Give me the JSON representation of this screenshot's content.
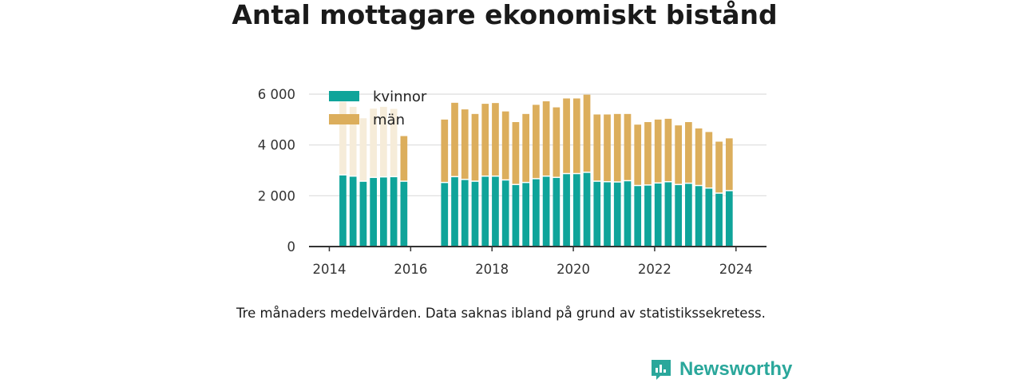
{
  "title": "Antal mottagare ekonomiskt bistånd",
  "note": "Tre månaders medelvärden. Data saknas ibland på grund av statistikssekretess.",
  "brand": "Newsworthy",
  "colors": {
    "kvinnor": "#0fa49a",
    "man": "#dcae5c",
    "man_faded": "#f6ecd9",
    "axis": "#333333",
    "grid": "#dddddd",
    "brand": "#2aa79b"
  },
  "chart_data": {
    "type": "bar",
    "stacked": true,
    "x_type": "date",
    "xlim": [
      "2013-07-01",
      "2024-10-01"
    ],
    "ylim": [
      0,
      6000
    ],
    "yticks": [
      0,
      2000,
      4000,
      6000
    ],
    "ytick_labels": [
      "0",
      "2 000",
      "4 000",
      "6 000"
    ],
    "xticks": [
      "2014-01-01",
      "2016-01-01",
      "2018-01-01",
      "2020-01-01",
      "2022-01-01",
      "2024-01-01"
    ],
    "xtick_labels": [
      "2014",
      "2016",
      "2018",
      "2020",
      "2022",
      "2024"
    ],
    "grid": true,
    "legend_position": "top-left",
    "legend": [
      {
        "name": "kvinnor",
        "color": "#0fa49a"
      },
      {
        "name": "män",
        "color": "#dcae5c"
      }
    ],
    "note": "The män series is drawn faded for 2014-04 to 2015-07 while kvinnor is shown solid in that period.",
    "series": [
      {
        "name": "kvinnor",
        "values": [
          2800,
          2750,
          2550,
          2700,
          2720,
          2730,
          2550,
          null,
          null,
          null,
          2500,
          2730,
          2620,
          2550,
          2750,
          2750,
          2600,
          2420,
          2500,
          2650,
          2750,
          2700,
          2850,
          2850,
          2900,
          2550,
          2530,
          2520,
          2570,
          2380,
          2400,
          2480,
          2530,
          2420,
          2470,
          2380,
          2280,
          2080,
          2180
        ]
      },
      {
        "name": "män",
        "values": [
          2900,
          2750,
          2500,
          2730,
          2780,
          2690,
          1800,
          null,
          null,
          null,
          2500,
          2930,
          2780,
          2670,
          2870,
          2900,
          2720,
          2480,
          2720,
          2930,
          2970,
          2780,
          2980,
          2980,
          3080,
          2650,
          2670,
          2700,
          2650,
          2420,
          2500,
          2520,
          2500,
          2350,
          2430,
          2270,
          2230,
          2050,
          2080
        ]
      }
    ],
    "dates": [
      "2014-04",
      "2014-07",
      "2014-10",
      "2015-01",
      "2015-04",
      "2015-07",
      "2015-10",
      "2016-01",
      "2016-04",
      "2016-07",
      "2016-10",
      "2017-01",
      "2017-04",
      "2017-07",
      "2017-10",
      "2018-01",
      "2018-04",
      "2018-07",
      "2018-10",
      "2019-01",
      "2019-04",
      "2019-07",
      "2019-10",
      "2020-01",
      "2020-04",
      "2020-07",
      "2020-10",
      "2021-01",
      "2021-04",
      "2021-07",
      "2021-10",
      "2022-01",
      "2022-04",
      "2022-07",
      "2022-10",
      "2023-01",
      "2023-04",
      "2023-07",
      "2023-10"
    ]
  }
}
